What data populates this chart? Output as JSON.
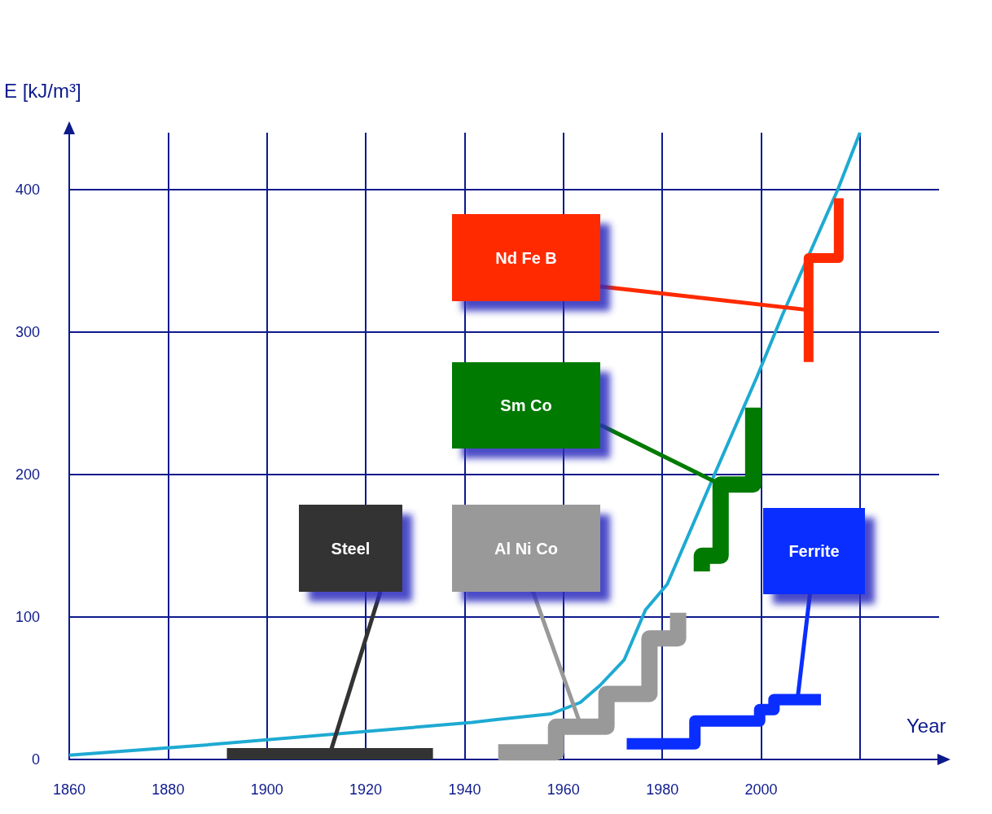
{
  "chart_data": {
    "type": "line",
    "xlabel": "Year",
    "ylabel": "E [kJ/m³]",
    "xlim": [
      1860,
      2036
    ],
    "ylim": [
      0,
      440
    ],
    "xticks": [
      1860,
      1880,
      1900,
      1920,
      1940,
      1960,
      1980,
      2000,
      {
        "value": 2020,
        "label": null
      }
    ],
    "yticks": [
      0,
      100,
      200,
      300,
      400
    ],
    "grid": true,
    "line_style": "solid",
    "series": [
      {
        "color": "#1eaad2",
        "x": [
          1860,
          1887.1,
          1941.5,
          1946.4,
          1957.5,
          1963.4,
          1967.4,
          1972.3,
          1976.6,
          1981,
          1990.8,
          1999.2,
          2004.3,
          2015.5,
          2020
        ],
        "values": [
          3,
          10,
          26,
          28,
          32,
          40,
          52,
          70,
          105,
          123,
          202,
          269,
          312,
          400,
          440
        ]
      },
      {
        "color": "#333333",
        "x": [
          1891.9,
          1933.6
        ],
        "values": [
          4,
          4
        ]
      },
      {
        "color": "#999999",
        "x": [
          1946.8,
          1958.5,
          1958.5,
          1968.7,
          1968.7,
          1977.4,
          1977.4,
          1983.2,
          1983.2
        ],
        "values": [
          5,
          5,
          23,
          23,
          46,
          46,
          85,
          85,
          103
        ]
      },
      {
        "color": "#0a2eff",
        "x": [
          1972.8,
          1986.6,
          1986.6,
          1999.7,
          1999.7,
          2002.6,
          2002.6,
          2012.1
        ],
        "values": [
          11,
          11,
          27,
          27,
          35,
          35,
          42,
          42
        ]
      },
      {
        "color": "#007a00",
        "x": [
          1988,
          1988,
          1991.8,
          1991.8,
          1998.4,
          1998.4
        ],
        "values": [
          132,
          143,
          143,
          193,
          193,
          247
        ]
      },
      {
        "color": "#ff2a00",
        "x": [
          2009.6,
          2009.6,
          2015.7,
          2015.7
        ],
        "values": [
          279,
          352,
          352,
          394
        ]
      }
    ],
    "annotations": [
      "Steel",
      "Al Ni Co",
      "Ferrite",
      "Sm Co",
      "Nd Fe B"
    ]
  }
}
